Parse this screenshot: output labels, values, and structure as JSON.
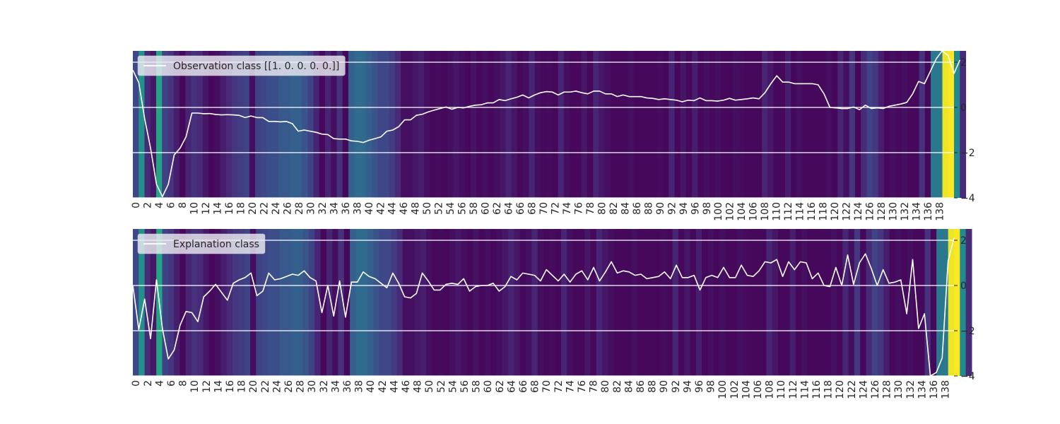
{
  "chart_data": [
    {
      "type": "line",
      "panel": "observation",
      "background": "heatmap",
      "colormap": "viridis",
      "legend": {
        "label": "Observation class [[1. 0. 0. 0. 0.]]",
        "position": "top-left"
      },
      "xlim": [
        0,
        139
      ],
      "ylim": [
        -4,
        2.5
      ],
      "xticks": [
        "0",
        "2",
        "4",
        "6",
        "8",
        "10",
        "12",
        "14",
        "16",
        "18",
        "20",
        "22",
        "24",
        "26",
        "28",
        "30",
        "32",
        "34",
        "36",
        "38",
        "40",
        "42",
        "44",
        "46",
        "48",
        "50",
        "52",
        "54",
        "56",
        "58",
        "60",
        "62",
        "64",
        "66",
        "68",
        "70",
        "72",
        "74",
        "76",
        "78",
        "80",
        "82",
        "84",
        "86",
        "88",
        "90",
        "92",
        "94",
        "96",
        "98",
        "100",
        "102",
        "104",
        "106",
        "108",
        "110",
        "112",
        "114",
        "116",
        "118",
        "120",
        "122",
        "124",
        "126",
        "128",
        "130",
        "132",
        "134",
        "136",
        "138"
      ],
      "yticks": [
        "−4",
        "−2",
        "0",
        "2"
      ],
      "ytick_values": [
        -4,
        -2,
        0,
        2
      ],
      "grid": true,
      "line_color": "#ffffff",
      "values": [
        1.65,
        1.1,
        -0.5,
        -1.8,
        -3.4,
        -3.95,
        -3.4,
        -2.1,
        -1.8,
        -1.3,
        -0.25,
        -0.25,
        -0.28,
        -0.27,
        -0.31,
        -0.33,
        -0.32,
        -0.33,
        -0.35,
        -0.45,
        -0.38,
        -0.45,
        -0.45,
        -0.62,
        -0.62,
        -0.64,
        -0.62,
        -0.72,
        -1.05,
        -1.0,
        -1.05,
        -1.1,
        -1.18,
        -1.2,
        -1.38,
        -1.4,
        -1.4,
        -1.48,
        -1.5,
        -1.55,
        -1.45,
        -1.38,
        -1.3,
        -1.05,
        -1.0,
        -0.85,
        -0.55,
        -0.55,
        -0.35,
        -0.3,
        -0.2,
        -0.12,
        -0.05,
        0.02,
        -0.08,
        0.0,
        -0.02,
        0.05,
        0.1,
        0.12,
        0.2,
        0.2,
        0.35,
        0.3,
        0.38,
        0.45,
        0.55,
        0.42,
        0.55,
        0.65,
        0.7,
        0.68,
        0.55,
        0.68,
        0.68,
        0.72,
        0.65,
        0.6,
        0.72,
        0.72,
        0.6,
        0.6,
        0.48,
        0.55,
        0.48,
        0.48,
        0.48,
        0.42,
        0.4,
        0.35,
        0.38,
        0.35,
        0.32,
        0.25,
        0.32,
        0.3,
        0.42,
        0.3,
        0.3,
        0.28,
        0.32,
        0.4,
        0.32,
        0.35,
        0.38,
        0.42,
        0.38,
        0.65,
        1.05,
        1.4,
        1.12,
        1.12,
        1.05,
        1.05,
        1.05,
        1.05,
        1.0,
        0.6,
        0.0,
        -0.02,
        -0.05,
        -0.05,
        0.02,
        -0.1,
        0.1,
        -0.05,
        -0.02,
        -0.05,
        0.05,
        0.1,
        0.15,
        0.22,
        0.6,
        1.15,
        1.05,
        1.6,
        2.15,
        2.5,
        2.3,
        1.5,
        2.1
      ],
      "heat": [
        0.22,
        0.5,
        0.12,
        0.06,
        0.58,
        0.2,
        0.16,
        0.08,
        0.02,
        0.1,
        0.14,
        0.12,
        0.06,
        0.02,
        0.04,
        0.08,
        0.12,
        0.16,
        0.18,
        0.2,
        0.04,
        0.2,
        0.22,
        0.24,
        0.24,
        0.28,
        0.28,
        0.3,
        0.3,
        0.26,
        0.2,
        0.1,
        0.02,
        0.1,
        0.04,
        0.14,
        0.02,
        0.3,
        0.34,
        0.34,
        0.3,
        0.26,
        0.22,
        0.22,
        0.18,
        0.12,
        0.04,
        0.04,
        0.06,
        0.08,
        0.04,
        0.02,
        0.03,
        0.02,
        0.04,
        0.06,
        0.04,
        0.02,
        0.05,
        0.02,
        0.04,
        0.02,
        0.04,
        0.06,
        0.1,
        0.06,
        0.02,
        0.04,
        0.1,
        0.04,
        0.02,
        0.03,
        0.02,
        0.1,
        0.04,
        0.02,
        0.02,
        0.06,
        0.02,
        0.1,
        0.06,
        0.04,
        0.02,
        0.02,
        0.02,
        0.04,
        0.02,
        0.02,
        0.02,
        0.02,
        0.03,
        0.02,
        0.1,
        0.02,
        0.06,
        0.02,
        0.08,
        0.02,
        0.04,
        0.02,
        0.04,
        0.02,
        0.02,
        0.04,
        0.03,
        0.02,
        0.02,
        0.02,
        0.1,
        0.06,
        0.02,
        0.02,
        0.08,
        0.02,
        0.04,
        0.02,
        0.02,
        0.02,
        0.02,
        0.04,
        0.02,
        0.1,
        0.04,
        0.16,
        0.02,
        0.12,
        0.2,
        0.16,
        0.08,
        0.02,
        0.04,
        0.02,
        0.04,
        0.02,
        0.02,
        0.14,
        0.02,
        0.4,
        0.4,
        0.97,
        1.0,
        0.48,
        0.12
      ]
    },
    {
      "type": "line",
      "panel": "explanation",
      "background": "heatmap",
      "colormap": "viridis",
      "legend": {
        "label": "Explanation class",
        "position": "top-left"
      },
      "xlim": [
        0,
        139
      ],
      "ylim": [
        -4,
        2.5
      ],
      "xticks": [
        "0",
        "2",
        "4",
        "6",
        "8",
        "10",
        "12",
        "14",
        "16",
        "18",
        "20",
        "22",
        "24",
        "26",
        "28",
        "30",
        "32",
        "34",
        "36",
        "38",
        "40",
        "42",
        "44",
        "46",
        "48",
        "50",
        "52",
        "54",
        "56",
        "58",
        "60",
        "62",
        "64",
        "66",
        "68",
        "70",
        "72",
        "74",
        "76",
        "78",
        "80",
        "82",
        "84",
        "86",
        "88",
        "90",
        "92",
        "94",
        "96",
        "98",
        "100",
        "102",
        "104",
        "106",
        "108",
        "110",
        "112",
        "114",
        "116",
        "118",
        "120",
        "122",
        "124",
        "126",
        "128",
        "130",
        "132",
        "134",
        "136",
        "138"
      ],
      "yticks": [
        "−4",
        "−2",
        "0",
        "2"
      ],
      "ytick_values": [
        -4,
        -2,
        0,
        2
      ],
      "grid": true,
      "line_color": "#ffffff",
      "values": [
        0.0,
        -1.95,
        -0.6,
        -2.35,
        0.25,
        -1.9,
        -3.25,
        -2.85,
        -1.75,
        -1.15,
        -1.2,
        -1.6,
        -0.5,
        -0.25,
        0.05,
        -0.3,
        -0.65,
        0.1,
        0.25,
        0.35,
        0.55,
        -0.45,
        -0.25,
        0.55,
        0.25,
        0.3,
        0.4,
        0.5,
        0.45,
        0.65,
        0.35,
        0.2,
        -1.2,
        0.0,
        -1.35,
        0.2,
        -1.4,
        0.15,
        0.15,
        0.6,
        0.4,
        0.3,
        0.1,
        -0.1,
        0.55,
        0.1,
        -0.5,
        -0.55,
        -0.35,
        0.55,
        0.2,
        -0.2,
        -0.2,
        0.05,
        0.1,
        0.05,
        0.3,
        -0.25,
        -0.05,
        0.0,
        0.0,
        0.1,
        -0.25,
        -0.05,
        0.4,
        0.25,
        0.55,
        0.5,
        0.45,
        0.2,
        0.7,
        0.45,
        0.2,
        0.5,
        0.15,
        0.5,
        0.65,
        0.25,
        0.8,
        0.2,
        0.6,
        1.05,
        0.55,
        0.65,
        0.6,
        0.45,
        0.5,
        0.3,
        0.35,
        0.4,
        0.6,
        0.3,
        0.9,
        0.35,
        0.35,
        0.45,
        -0.2,
        0.35,
        0.45,
        0.35,
        0.8,
        0.35,
        0.35,
        0.9,
        0.45,
        0.4,
        0.65,
        1.05,
        1.0,
        1.15,
        0.4,
        1.05,
        0.7,
        1.05,
        1.0,
        0.3,
        0.55,
        0.0,
        -0.05,
        0.8,
        0.0,
        1.35,
        0.05,
        1.0,
        1.4,
        0.75,
        0.0,
        0.7,
        0.1,
        0.15,
        0.25,
        -1.25,
        1.15,
        -1.9,
        -1.25,
        -4.0,
        -3.85,
        -3.2,
        1.1,
        2.1
      ],
      "heat": [
        0.22,
        0.5,
        0.12,
        0.06,
        0.58,
        0.2,
        0.16,
        0.08,
        0.02,
        0.1,
        0.14,
        0.12,
        0.06,
        0.02,
        0.04,
        0.08,
        0.12,
        0.16,
        0.18,
        0.2,
        0.04,
        0.2,
        0.22,
        0.24,
        0.24,
        0.28,
        0.28,
        0.3,
        0.3,
        0.26,
        0.2,
        0.1,
        0.02,
        0.1,
        0.04,
        0.14,
        0.02,
        0.3,
        0.34,
        0.34,
        0.3,
        0.26,
        0.22,
        0.22,
        0.18,
        0.12,
        0.04,
        0.04,
        0.06,
        0.08,
        0.04,
        0.02,
        0.03,
        0.02,
        0.04,
        0.06,
        0.04,
        0.02,
        0.05,
        0.02,
        0.04,
        0.02,
        0.04,
        0.06,
        0.1,
        0.06,
        0.02,
        0.04,
        0.1,
        0.04,
        0.02,
        0.03,
        0.02,
        0.1,
        0.04,
        0.02,
        0.02,
        0.06,
        0.02,
        0.1,
        0.06,
        0.04,
        0.02,
        0.02,
        0.02,
        0.04,
        0.02,
        0.02,
        0.02,
        0.02,
        0.03,
        0.02,
        0.1,
        0.02,
        0.06,
        0.02,
        0.08,
        0.02,
        0.04,
        0.02,
        0.04,
        0.02,
        0.02,
        0.04,
        0.03,
        0.02,
        0.02,
        0.02,
        0.1,
        0.06,
        0.02,
        0.02,
        0.08,
        0.02,
        0.04,
        0.02,
        0.02,
        0.02,
        0.02,
        0.04,
        0.02,
        0.1,
        0.04,
        0.16,
        0.02,
        0.12,
        0.2,
        0.16,
        0.08,
        0.02,
        0.04,
        0.02,
        0.04,
        0.02,
        0.02,
        0.14,
        0.02,
        0.4,
        0.4,
        0.97,
        1.0,
        0.48,
        0.12
      ]
    }
  ]
}
